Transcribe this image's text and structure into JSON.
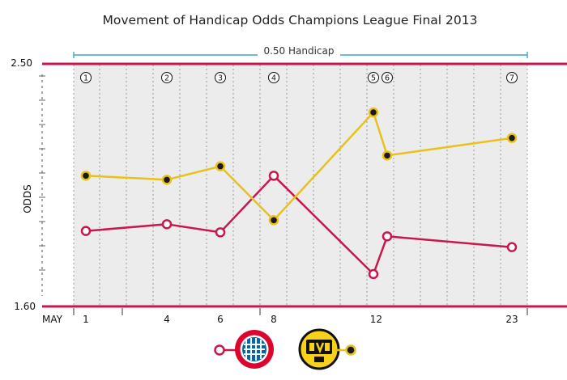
{
  "chart_data": {
    "type": "line",
    "title": "Movement of Handicap Odds Champions League Final 2013",
    "subtitle": "0.50 Handicap",
    "ylabel": "ODDS",
    "xlabel": "MAY",
    "ylim": [
      1.6,
      2.5
    ],
    "y_ticks": [
      "2.50",
      "1.60"
    ],
    "x_ticks": [
      "1",
      "4",
      "6",
      "8",
      "12",
      "23"
    ],
    "grid": true,
    "event_markers": [
      {
        "label": "1",
        "x": 1
      },
      {
        "label": "2",
        "x": 4
      },
      {
        "label": "3",
        "x": 6
      },
      {
        "label": "4",
        "x": 8
      },
      {
        "label": "5",
        "x": 11.9
      },
      {
        "label": "6",
        "x": 12.4
      },
      {
        "label": "7",
        "x": 23
      }
    ],
    "series": [
      {
        "color": "#c8174c",
        "marker_fill": "#ffffff",
        "points": [
          {
            "x": 1,
            "y": 1.88
          },
          {
            "x": 4,
            "y": 1.905
          },
          {
            "x": 6,
            "y": 1.875
          },
          {
            "x": 8,
            "y": 2.085
          },
          {
            "x": 11.9,
            "y": 1.72
          },
          {
            "x": 12.4,
            "y": 1.86
          },
          {
            "x": 23,
            "y": 1.82
          }
        ]
      },
      {
        "color": "#e8c21a",
        "marker_fill": "#1a1a1a",
        "points": [
          {
            "x": 1,
            "y": 2.085
          },
          {
            "x": 4,
            "y": 2.07
          },
          {
            "x": 6,
            "y": 2.12
          },
          {
            "x": 8,
            "y": 1.92
          },
          {
            "x": 11.9,
            "y": 2.32
          },
          {
            "x": 12.4,
            "y": 2.16
          },
          {
            "x": 23,
            "y": 2.225
          }
        ]
      }
    ],
    "legend": {
      "placement": "bottom-center",
      "items": [
        {
          "logo": "fc-bayern-munchen-crest-icon",
          "logo_text": "FC BAYERN MÜNCHEN",
          "line_color": "#c8174c",
          "marker_fill": "#ffffff"
        },
        {
          "logo": "bvb-09-crest-icon",
          "logo_text": "BVB 09",
          "line_color": "#e8c21a",
          "marker_fill": "#1a1a1a"
        }
      ]
    }
  },
  "colors": {
    "red": "#c8174c",
    "yellow": "#e8c21a",
    "band": "#ececec",
    "subtitle_line": "#3aa7c9"
  }
}
